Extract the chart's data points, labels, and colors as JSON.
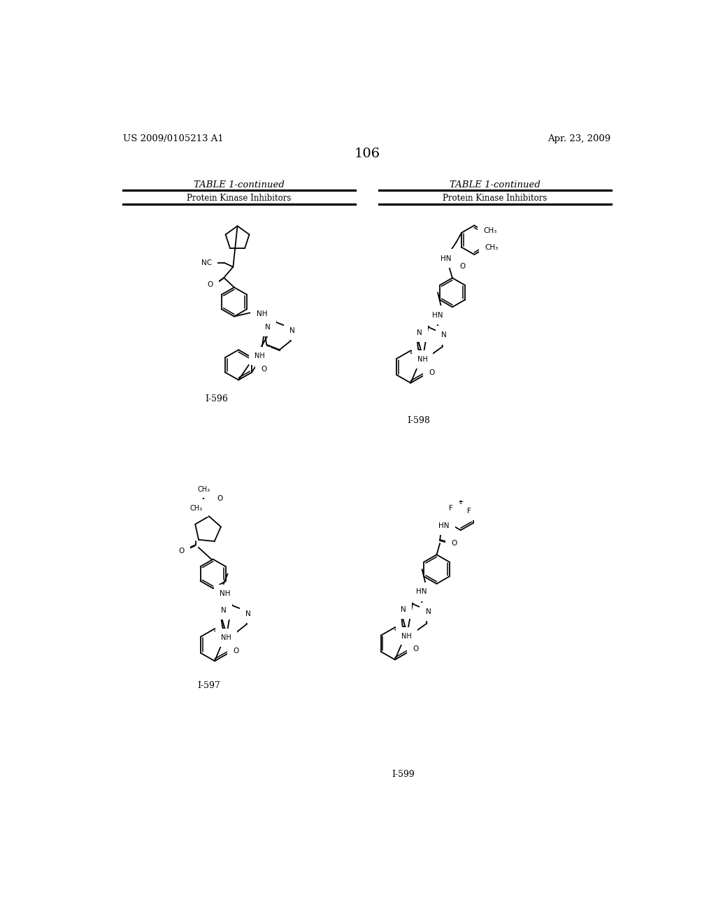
{
  "page_number": "106",
  "patent_number": "US 2009/0105213 A1",
  "patent_date": "Apr. 23, 2009",
  "table_title": "TABLE 1-continued",
  "table_subtitle": "Protein Kinase Inhibitors",
  "bg_color": "#ffffff",
  "figsize": [
    10.24,
    13.2
  ],
  "dpi": 100,
  "compounds": [
    "I-596",
    "I-597",
    "I-598",
    "I-599"
  ]
}
